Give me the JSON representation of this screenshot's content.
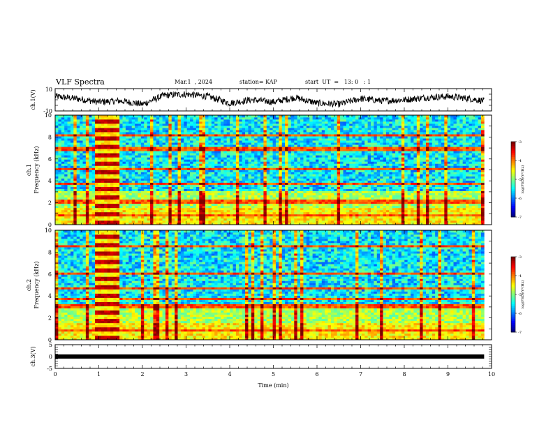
{
  "header": {
    "title": "VLF Spectra",
    "date": "Mar.1  , 2024",
    "station": "station= KAP",
    "start": "start  UT  =   13: 0   : 1"
  },
  "colors": {
    "jet": [
      "#00007f",
      "#0000ff",
      "#007fff",
      "#00ffff",
      "#7fff7f",
      "#ffff00",
      "#ff7f00",
      "#ff0000",
      "#7f0000"
    ],
    "waveform": "#000000"
  },
  "chart_data": [
    {
      "type": "line",
      "panel": "ch1-waveform",
      "ylabel": "ch.1(V)",
      "yticks": [
        "10",
        "-10"
      ],
      "ylim": [
        -10,
        10
      ],
      "xlim": [
        0,
        10
      ],
      "description_values": "noisy waveform, roughly -5 to +8 V",
      "x": [
        0,
        0.5,
        1,
        1.5,
        2,
        2.5,
        3,
        3.5,
        4,
        4.5,
        5,
        5.5,
        6,
        6.5,
        7,
        7.5,
        8,
        8.5,
        9,
        9.5,
        9.83
      ],
      "y": [
        3,
        1,
        -2,
        -1,
        -4,
        4,
        5,
        3,
        -3,
        0,
        -2,
        2,
        -3,
        -4,
        1,
        -1,
        0,
        2,
        3,
        1,
        -1
      ]
    },
    {
      "type": "heatmap",
      "panel": "ch1-spectrogram",
      "ylabel": "ch.1\nFrequency  (kHz)",
      "yticks": [
        "0",
        "2",
        "4",
        "6",
        "8",
        "10"
      ],
      "ylim": [
        0,
        10
      ],
      "xlim": [
        0,
        10
      ],
      "colorbar": {
        "label": "log(PSD)(V²/Hz)",
        "ticks": [
          "-3",
          "-4",
          "-5",
          "-6",
          "-7"
        ],
        "range": [
          -7,
          -3
        ]
      },
      "burst": {
        "t_start": 0.9,
        "t_end": 1.5
      }
    },
    {
      "type": "heatmap",
      "panel": "ch2-spectrogram",
      "ylabel": "ch.2\nFrequency  (kHz)",
      "yticks": [
        "0",
        "2",
        "4",
        "6",
        "8",
        "10"
      ],
      "ylim": [
        0,
        10
      ],
      "xlim": [
        0,
        10
      ],
      "colorbar": {
        "label": "log(PSD)(V²/Hz)",
        "ticks": [
          "-3",
          "-4",
          "-5",
          "-6",
          "-7"
        ],
        "range": [
          -7,
          -3
        ]
      },
      "burst": {
        "t_start": 0.9,
        "t_end": 1.5
      }
    },
    {
      "type": "line",
      "panel": "ch3-waveform",
      "ylabel": "ch.3(V)",
      "yticks": [
        "5",
        "0",
        "-5"
      ],
      "ylim": [
        -5,
        5
      ],
      "xlim": [
        0,
        10
      ],
      "x": [
        0,
        9.83
      ],
      "y": [
        0,
        0
      ]
    }
  ],
  "xaxis": {
    "label": "Time  (min)",
    "ticks": [
      "0",
      "1",
      "2",
      "3",
      "4",
      "5",
      "6",
      "7",
      "8",
      "9",
      "10"
    ]
  }
}
